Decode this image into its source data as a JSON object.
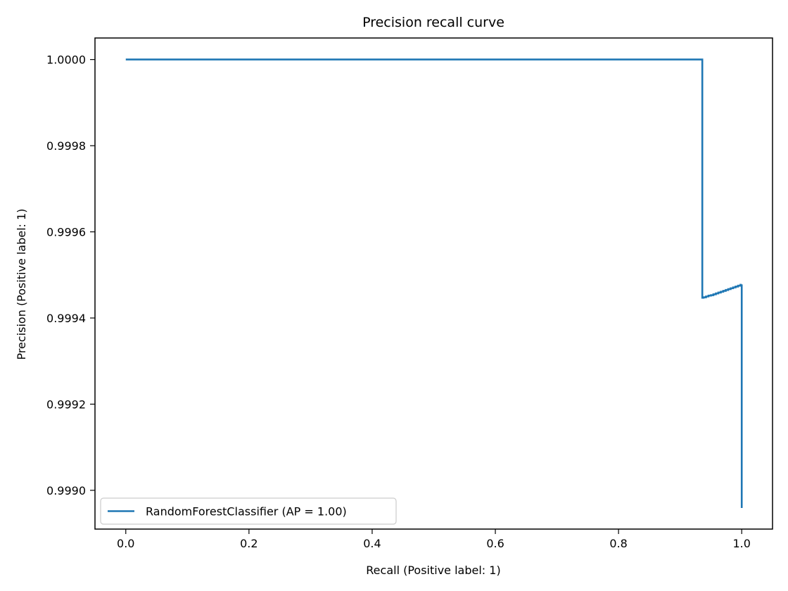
{
  "chart_data": {
    "type": "line",
    "title": "Precision recall curve",
    "xlabel": "Recall (Positive label: 1)",
    "ylabel": "Precision (Positive label: 1)",
    "xlim": [
      -0.05,
      1.05
    ],
    "ylim": [
      0.99891,
      1.00005
    ],
    "xticks": [
      0.0,
      0.2,
      0.4,
      0.6,
      0.8,
      1.0
    ],
    "xtick_labels": [
      "0.0",
      "0.2",
      "0.4",
      "0.6",
      "0.8",
      "1.0"
    ],
    "yticks": [
      0.999,
      0.9992,
      0.9994,
      0.9996,
      0.9998,
      1.0
    ],
    "ytick_labels": [
      "0.9990",
      "0.9992",
      "0.9994",
      "0.9996",
      "0.9998",
      "1.0000"
    ],
    "grid": false,
    "legend_position": "lower-left",
    "series": [
      {
        "name": "RandomForestClassifier (AP = 1.00)",
        "color": "#1f77b4",
        "x": [
          0.0,
          0.936,
          0.936,
          0.938,
          0.942,
          0.946,
          0.95,
          0.954,
          0.958,
          0.962,
          0.966,
          0.97,
          0.974,
          0.978,
          0.982,
          0.986,
          0.99,
          0.994,
          0.998,
          1.0,
          1.0
        ],
        "y": [
          1.0,
          1.0,
          0.999447,
          0.999448,
          0.99945,
          0.999452,
          0.999453,
          0.999455,
          0.999457,
          0.999459,
          0.999461,
          0.999463,
          0.999465,
          0.999467,
          0.999469,
          0.999471,
          0.999473,
          0.999475,
          0.999477,
          0.999478,
          0.998959
        ],
        "step": "post"
      }
    ]
  }
}
